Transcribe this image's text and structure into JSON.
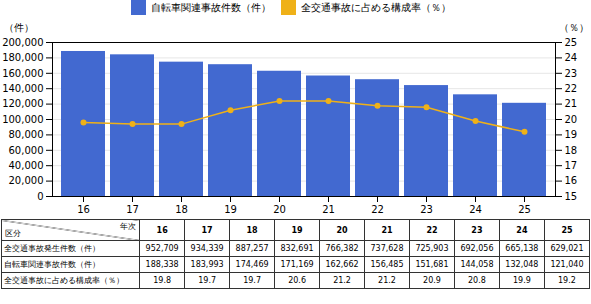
{
  "chart_data": {
    "type": "bar",
    "categories": [
      "16",
      "17",
      "18",
      "19",
      "20",
      "21",
      "22",
      "23",
      "24",
      "25"
    ],
    "ylabel": "（件）",
    "y2label": "（％）",
    "ylim": [
      0,
      200000
    ],
    "yticks": [
      0,
      {
        "value": 20000,
        "label": "20,000"
      },
      {
        "value": 40000,
        "label": "40,000"
      },
      {
        "value": 60000,
        "label": "60,000"
      },
      {
        "value": 80000,
        "label": "80,000"
      },
      {
        "value": 100000,
        "label": "100,000"
      },
      {
        "value": 120000,
        "label": "120,000"
      },
      {
        "value": 140000,
        "label": "140,000"
      },
      {
        "value": 160000,
        "label": "160,000"
      },
      {
        "value": 180000,
        "label": "180,000"
      },
      {
        "value": 200000,
        "label": "200,000"
      }
    ],
    "y2lim": [
      15,
      25
    ],
    "y2ticks": [
      15,
      16,
      17,
      18,
      19,
      20,
      21,
      22,
      23,
      24,
      25
    ],
    "grid": true,
    "legend": "top",
    "series": [
      {
        "name": "自転車関連事故件数（件）",
        "type": "bar",
        "values": [
          188338,
          183993,
          174469,
          171169,
          162662,
          156485,
          151681,
          144058,
          132048,
          121040
        ]
      },
      {
        "name": "全交通事故に占める構成率（％）",
        "type": "line",
        "axis": "y2",
        "marker": "circle",
        "values": [
          19.8,
          19.7,
          19.7,
          20.6,
          21.2,
          21.2,
          20.9,
          20.8,
          19.9,
          19.2
        ]
      }
    ],
    "table": {
      "corner_row_label": "区分",
      "corner_column_label": "年次",
      "rows": [
        {
          "name": "全交通事故発生件数（件）",
          "values": [
            952709,
            934339,
            887257,
            832691,
            766382,
            737628,
            725903,
            692056,
            665138,
            629021
          ],
          "value_labels": [
            "952,709",
            "934,339",
            "887,257",
            "832,691",
            "766,382",
            "737,628",
            "725,903",
            "692,056",
            "665,138",
            "629,021"
          ]
        },
        {
          "name": "自転車関連事故件数（件）",
          "values": [
            188338,
            183993,
            174469,
            171169,
            162662,
            156485,
            151681,
            144058,
            132048,
            121040
          ],
          "value_labels": [
            "188,338",
            "183,993",
            "174,469",
            "171,169",
            "162,662",
            "156,485",
            "151,681",
            "144,058",
            "132,048",
            "121,040"
          ]
        },
        {
          "name": "全交通事故に占める構成率（％）",
          "values": [
            19.8,
            19.7,
            19.7,
            20.6,
            21.2,
            21.2,
            20.9,
            20.8,
            19.9,
            19.2
          ]
        }
      ]
    }
  }
}
